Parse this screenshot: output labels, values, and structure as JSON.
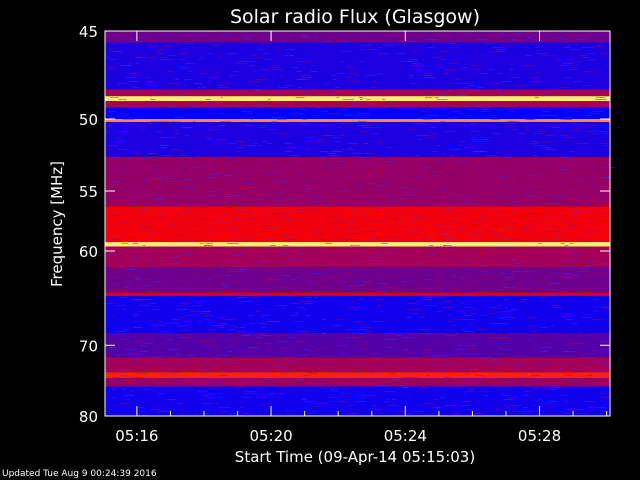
{
  "chart_data": {
    "type": "heatmap",
    "title": "Solar radio Flux (Glasgow)",
    "xlabel": "Start Time (09-Apr-14 05:15:03)",
    "ylabel": "Frequency [MHz]",
    "x_ticks": [
      "05:16",
      "05:20",
      "05:24",
      "05:28"
    ],
    "x_tick_minutes": [
      16,
      20,
      24,
      28
    ],
    "x_range_minutes": [
      15.05,
      30.1
    ],
    "y_ticks": [
      45,
      50,
      55,
      60,
      70,
      80
    ],
    "y_scale": "reciprocal",
    "ylim": [
      45,
      80
    ],
    "colormap": [
      "#000050",
      "#0000ff",
      "#8b0070",
      "#ff0000",
      "#ffff80"
    ],
    "bands": [
      {
        "f_from": 45.0,
        "f_to": 45.6,
        "level": 0.45
      },
      {
        "f_from": 45.6,
        "f_to": 48.2,
        "level": 0.3
      },
      {
        "f_from": 48.2,
        "f_to": 48.6,
        "level": 0.55
      },
      {
        "f_from": 48.6,
        "f_to": 48.9,
        "level": 0.98
      },
      {
        "f_from": 48.9,
        "f_to": 49.3,
        "level": 0.55
      },
      {
        "f_from": 49.3,
        "f_to": 50.0,
        "level": 0.25
      },
      {
        "f_from": 50.0,
        "f_to": 50.2,
        "level": 0.88
      },
      {
        "f_from": 50.2,
        "f_to": 52.5,
        "level": 0.3
      },
      {
        "f_from": 52.5,
        "f_to": 56.2,
        "level": 0.52
      },
      {
        "f_from": 56.2,
        "f_to": 59.2,
        "level": 0.72
      },
      {
        "f_from": 59.2,
        "f_to": 59.6,
        "level": 0.98
      },
      {
        "f_from": 59.6,
        "f_to": 61.5,
        "level": 0.55
      },
      {
        "f_from": 61.5,
        "f_to": 64.0,
        "level": 0.45
      },
      {
        "f_from": 64.0,
        "f_to": 64.4,
        "level": 0.65
      },
      {
        "f_from": 64.4,
        "f_to": 68.5,
        "level": 0.28
      },
      {
        "f_from": 68.5,
        "f_to": 71.5,
        "level": 0.4
      },
      {
        "f_from": 71.5,
        "f_to": 73.5,
        "level": 0.55
      },
      {
        "f_from": 73.5,
        "f_to": 74.3,
        "level": 0.78
      },
      {
        "f_from": 74.3,
        "f_to": 75.5,
        "level": 0.52
      },
      {
        "f_from": 75.5,
        "f_to": 80.0,
        "level": 0.28
      }
    ]
  },
  "footer_text": "Updated Tue Aug  9 00:24:39 2016"
}
